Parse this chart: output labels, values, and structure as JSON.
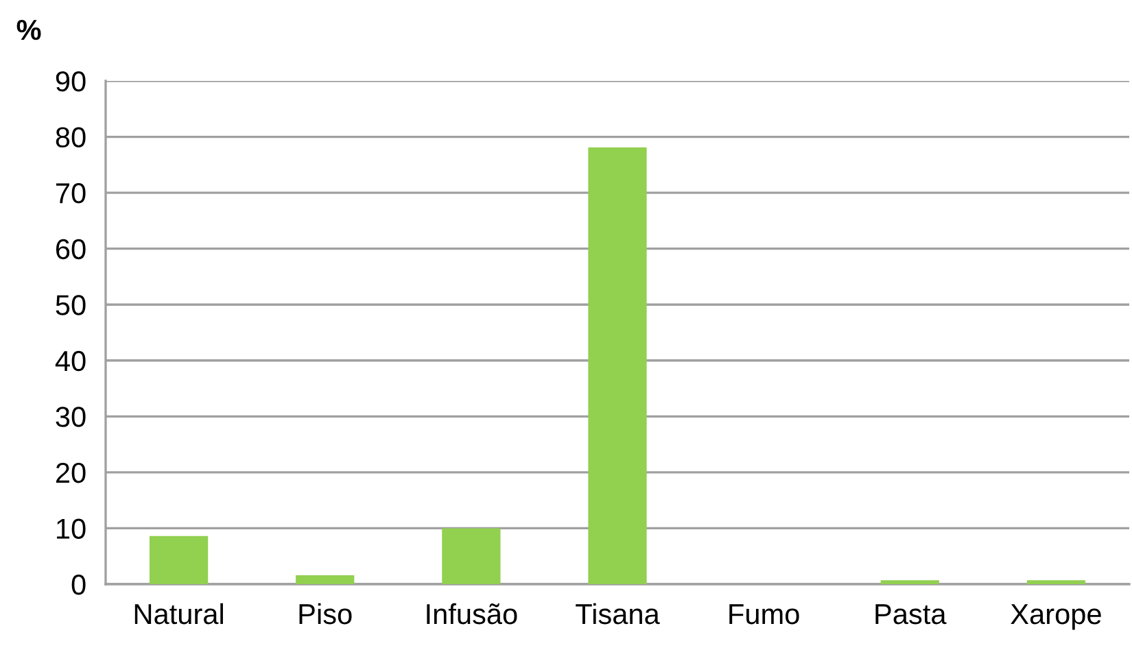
{
  "chart_data": {
    "type": "bar",
    "ylabel": "%",
    "categories": [
      "Natural",
      "Piso",
      "Infusão",
      "Tisana",
      "Fumo",
      "Pasta",
      "Xarope"
    ],
    "values": [
      8.6,
      1.6,
      10.0,
      78.1,
      0,
      0.7,
      0.7
    ],
    "color": "#92d050",
    "ylim": [
      0,
      90
    ],
    "yticks": [
      0,
      10,
      20,
      30,
      40,
      50,
      60,
      70,
      80,
      90
    ],
    "grid": "y",
    "legend": false
  }
}
